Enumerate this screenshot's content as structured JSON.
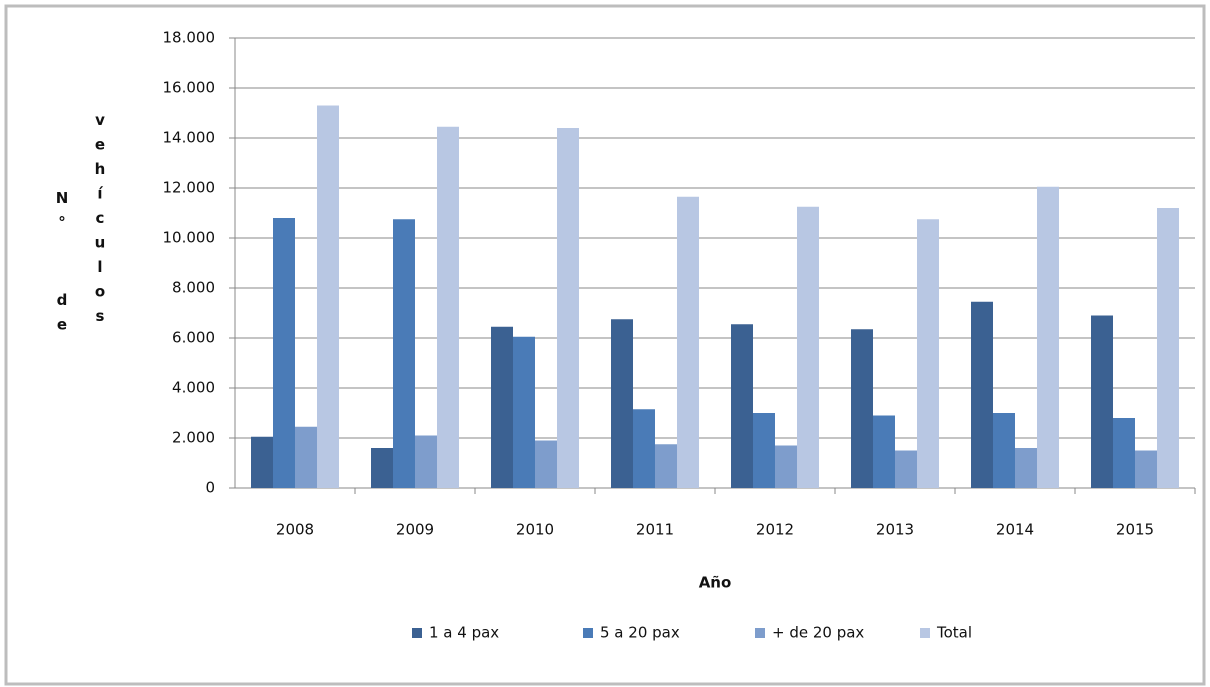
{
  "chart_data": {
    "type": "bar",
    "y_label": "N° de vehículos",
    "x_label": "Año",
    "categories": [
      "2008",
      "2009",
      "2010",
      "2011",
      "2012",
      "2013",
      "2014",
      "2015"
    ],
    "series": [
      {
        "name": "1 a 4 pax",
        "color": "#3b6192",
        "values": [
          2050,
          1600,
          6450,
          6750,
          6550,
          6350,
          7450,
          6900
        ]
      },
      {
        "name": "5 a 20 pax",
        "color": "#4a7bb7",
        "values": [
          10800,
          10750,
          6050,
          3150,
          3000,
          2900,
          3000,
          2800
        ]
      },
      {
        "name": "+ de 20 pax",
        "color": "#7e9dcc",
        "values": [
          2450,
          2100,
          1900,
          1750,
          1700,
          1500,
          1600,
          1500
        ]
      },
      {
        "name": "Total",
        "color": "#b8c7e3",
        "values": [
          15300,
          14450,
          14400,
          11650,
          11250,
          10750,
          12050,
          11200
        ]
      }
    ],
    "ylim": [
      0,
      18000
    ],
    "yticks": [
      0,
      {
        "value": 2000,
        "label": "2.000"
      },
      {
        "value": 4000,
        "label": "4.000"
      },
      {
        "value": 6000,
        "label": "6.000"
      },
      {
        "value": 8000,
        "label": "8.000"
      },
      {
        "value": 10000,
        "label": "10.000"
      },
      {
        "value": 12000,
        "label": "12.000"
      },
      {
        "value": 14000,
        "label": "14.000"
      },
      {
        "value": 16000,
        "label": "16.000"
      },
      {
        "value": 18000,
        "label": "18.000"
      }
    ],
    "grid": true,
    "legend": "bottom"
  }
}
